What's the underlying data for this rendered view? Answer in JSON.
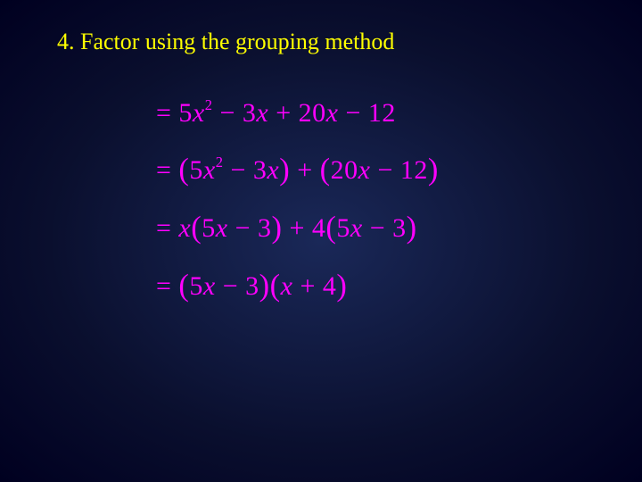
{
  "title": "4.  Factor using the grouping method",
  "colors": {
    "title_color": "#ffff00",
    "equation_color": "#ff00ff",
    "background_center": "#1a2858",
    "background_edge": "#000020"
  },
  "equations": [
    {
      "segments": [
        {
          "t": "= 5",
          "cls": "rm"
        },
        {
          "t": "x"
        },
        {
          "t": "2",
          "sup": true
        },
        {
          "t": " − 3",
          "cls": "rm"
        },
        {
          "t": "x"
        },
        {
          "t": " + 20",
          "cls": "rm"
        },
        {
          "t": "x"
        },
        {
          "t": " − 12",
          "cls": "rm"
        }
      ]
    },
    {
      "segments": [
        {
          "t": "= ",
          "cls": "rm"
        },
        {
          "t": "(",
          "cls": "paren"
        },
        {
          "t": "5",
          "cls": "rm"
        },
        {
          "t": "x"
        },
        {
          "t": "2",
          "sup": true
        },
        {
          "t": " − 3",
          "cls": "rm"
        },
        {
          "t": "x"
        },
        {
          "t": ")",
          "cls": "paren"
        },
        {
          "t": " + ",
          "cls": "rm"
        },
        {
          "t": "(",
          "cls": "paren"
        },
        {
          "t": "20",
          "cls": "rm"
        },
        {
          "t": "x"
        },
        {
          "t": " − 12",
          "cls": "rm"
        },
        {
          "t": ")",
          "cls": "paren"
        }
      ]
    },
    {
      "segments": [
        {
          "t": "= ",
          "cls": "rm"
        },
        {
          "t": "x"
        },
        {
          "t": "(",
          "cls": "paren"
        },
        {
          "t": "5",
          "cls": "rm"
        },
        {
          "t": "x"
        },
        {
          "t": " − 3",
          "cls": "rm"
        },
        {
          "t": ")",
          "cls": "paren"
        },
        {
          "t": " + 4",
          "cls": "rm"
        },
        {
          "t": "(",
          "cls": "paren"
        },
        {
          "t": "5",
          "cls": "rm"
        },
        {
          "t": "x"
        },
        {
          "t": " − 3",
          "cls": "rm"
        },
        {
          "t": ")",
          "cls": "paren"
        }
      ]
    },
    {
      "segments": [
        {
          "t": "= ",
          "cls": "rm"
        },
        {
          "t": "(",
          "cls": "paren"
        },
        {
          "t": "5",
          "cls": "rm"
        },
        {
          "t": "x"
        },
        {
          "t": " − 3",
          "cls": "rm"
        },
        {
          "t": ")",
          "cls": "paren"
        },
        {
          "t": "(",
          "cls": "paren"
        },
        {
          "t": "x"
        },
        {
          "t": " + 4",
          "cls": "rm"
        },
        {
          "t": ")",
          "cls": "paren"
        }
      ]
    }
  ]
}
